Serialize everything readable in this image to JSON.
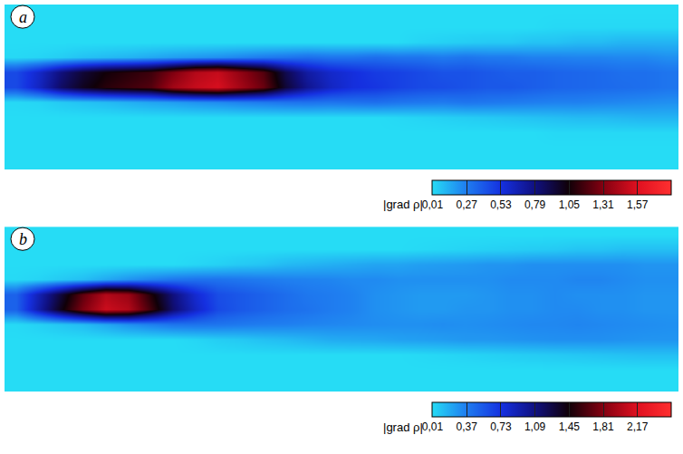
{
  "chart_data": [
    {
      "type": "heatmap",
      "panel": "a",
      "tick_labels": false,
      "z": [
        [
          0.01,
          0.01,
          0.01,
          0.01,
          0.01,
          0.01,
          0.01,
          0.01,
          0.01,
          0.01,
          0.01,
          0.01,
          0.01,
          0.01,
          0.01,
          0.01,
          0.01,
          0.01,
          0.01,
          0.01,
          0.01,
          0.01,
          0.01,
          0.01,
          0.01,
          0.01,
          0.01,
          0.01,
          0.01,
          0.01
        ],
        [
          0.01,
          0.01,
          0.01,
          0.01,
          0.01,
          0.01,
          0.01,
          0.01,
          0.01,
          0.01,
          0.01,
          0.01,
          0.01,
          0.01,
          0.01,
          0.01,
          0.01,
          0.01,
          0.01,
          0.01,
          0.01,
          0.01,
          0.01,
          0.01,
          0.02,
          0.02,
          0.02,
          0.02,
          0.02,
          0.02
        ],
        [
          0.01,
          0.01,
          0.01,
          0.01,
          0.01,
          0.01,
          0.01,
          0.01,
          0.01,
          0.01,
          0.01,
          0.01,
          0.01,
          0.01,
          0.01,
          0.01,
          0.01,
          0.01,
          0.03,
          0.04,
          0.05,
          0.06,
          0.06,
          0.08,
          0.08,
          0.1,
          0.1,
          0.12,
          0.12,
          0.12
        ],
        [
          0.02,
          0.03,
          0.05,
          0.08,
          0.1,
          0.12,
          0.15,
          0.18,
          0.2,
          0.22,
          0.25,
          0.28,
          0.3,
          0.32,
          0.3,
          0.3,
          0.32,
          0.3,
          0.3,
          0.28,
          0.3,
          0.28,
          0.28,
          0.26,
          0.26,
          0.25,
          0.25,
          0.24,
          0.24,
          0.22
        ],
        [
          0.45,
          0.6,
          0.8,
          0.95,
          1.05,
          1.1,
          1.15,
          1.3,
          1.45,
          1.5,
          1.35,
          1.2,
          0.9,
          0.7,
          0.6,
          0.55,
          0.5,
          0.48,
          0.45,
          0.42,
          0.42,
          0.4,
          0.38,
          0.38,
          0.36,
          0.35,
          0.34,
          0.32,
          0.32,
          0.3
        ],
        [
          0.45,
          0.62,
          0.85,
          1.0,
          1.1,
          1.15,
          1.2,
          1.4,
          1.5,
          1.55,
          1.4,
          1.25,
          0.95,
          0.75,
          0.62,
          0.55,
          0.52,
          0.48,
          0.45,
          0.44,
          0.42,
          0.4,
          0.4,
          0.38,
          0.36,
          0.35,
          0.34,
          0.33,
          0.32,
          0.3
        ],
        [
          0.02,
          0.03,
          0.06,
          0.08,
          0.1,
          0.13,
          0.16,
          0.18,
          0.21,
          0.23,
          0.26,
          0.28,
          0.3,
          0.31,
          0.3,
          0.31,
          0.32,
          0.3,
          0.29,
          0.28,
          0.3,
          0.29,
          0.28,
          0.27,
          0.26,
          0.26,
          0.25,
          0.24,
          0.23,
          0.22
        ],
        [
          0.01,
          0.01,
          0.01,
          0.01,
          0.01,
          0.01,
          0.01,
          0.01,
          0.01,
          0.01,
          0.01,
          0.01,
          0.01,
          0.01,
          0.01,
          0.01,
          0.01,
          0.02,
          0.03,
          0.04,
          0.05,
          0.06,
          0.07,
          0.08,
          0.09,
          0.1,
          0.1,
          0.11,
          0.12,
          0.12
        ],
        [
          0.01,
          0.01,
          0.01,
          0.01,
          0.01,
          0.01,
          0.01,
          0.01,
          0.01,
          0.01,
          0.01,
          0.01,
          0.01,
          0.01,
          0.01,
          0.01,
          0.01,
          0.01,
          0.01,
          0.01,
          0.01,
          0.01,
          0.01,
          0.01,
          0.02,
          0.02,
          0.02,
          0.02,
          0.02,
          0.02
        ],
        [
          0.01,
          0.01,
          0.01,
          0.01,
          0.01,
          0.01,
          0.01,
          0.01,
          0.01,
          0.01,
          0.01,
          0.01,
          0.01,
          0.01,
          0.01,
          0.01,
          0.01,
          0.01,
          0.01,
          0.01,
          0.01,
          0.01,
          0.01,
          0.01,
          0.01,
          0.01,
          0.01,
          0.01,
          0.01,
          0.01
        ],
        [
          0.01,
          0.01,
          0.01,
          0.01,
          0.01,
          0.01,
          0.01,
          0.01,
          0.01,
          0.01,
          0.01,
          0.01,
          0.01,
          0.01,
          0.01,
          0.01,
          0.01,
          0.01,
          0.01,
          0.01,
          0.01,
          0.01,
          0.01,
          0.01,
          0.01,
          0.01,
          0.01,
          0.01,
          0.01,
          0.01
        ]
      ],
      "colorbar": {
        "title": "|grad ρ|",
        "range": [
          0.01,
          1.83
        ],
        "ticks": [
          {
            "value": 0.01,
            "label": "0,01"
          },
          {
            "value": 0.27,
            "label": "0,27"
          },
          {
            "value": 0.53,
            "label": "0,53"
          },
          {
            "value": 0.79,
            "label": "0,79"
          },
          {
            "value": 1.05,
            "label": "1,05"
          },
          {
            "value": 1.31,
            "label": "1,31"
          },
          {
            "value": 1.57,
            "label": "1,57"
          }
        ]
      }
    },
    {
      "type": "heatmap",
      "panel": "b",
      "tick_labels": false,
      "z": [
        [
          0.01,
          0.01,
          0.01,
          0.01,
          0.01,
          0.01,
          0.01,
          0.01,
          0.01,
          0.01,
          0.01,
          0.01,
          0.01,
          0.01,
          0.01,
          0.01,
          0.01,
          0.01,
          0.01,
          0.01,
          0.01,
          0.01,
          0.01,
          0.01,
          0.01,
          0.01,
          0.01,
          0.01,
          0.01,
          0.01
        ],
        [
          0.01,
          0.01,
          0.01,
          0.01,
          0.01,
          0.01,
          0.01,
          0.01,
          0.01,
          0.01,
          0.01,
          0.01,
          0.01,
          0.01,
          0.01,
          0.01,
          0.01,
          0.01,
          0.02,
          0.03,
          0.04,
          0.05,
          0.06,
          0.07,
          0.08,
          0.1,
          0.1,
          0.12,
          0.12,
          0.12
        ],
        [
          0.01,
          0.01,
          0.01,
          0.01,
          0.01,
          0.01,
          0.01,
          0.01,
          0.03,
          0.05,
          0.08,
          0.1,
          0.14,
          0.16,
          0.18,
          0.2,
          0.22,
          0.22,
          0.24,
          0.25,
          0.26,
          0.28,
          0.28,
          0.3,
          0.3,
          0.3,
          0.3,
          0.3,
          0.28,
          0.28
        ],
        [
          0.02,
          0.04,
          0.08,
          0.12,
          0.2,
          0.28,
          0.35,
          0.4,
          0.42,
          0.42,
          0.4,
          0.38,
          0.36,
          0.35,
          0.34,
          0.32,
          0.32,
          0.3,
          0.3,
          0.3,
          0.3,
          0.3,
          0.32,
          0.32,
          0.32,
          0.34,
          0.34,
          0.32,
          0.3,
          0.3
        ],
        [
          0.5,
          0.9,
          1.3,
          1.7,
          2.0,
          1.9,
          1.5,
          1.1,
          0.8,
          0.6,
          0.55,
          0.5,
          0.45,
          0.4,
          0.38,
          0.35,
          0.3,
          0.28,
          0.26,
          0.26,
          0.26,
          0.28,
          0.3,
          0.3,
          0.32,
          0.3,
          0.3,
          0.3,
          0.28,
          0.28
        ],
        [
          0.5,
          0.95,
          1.4,
          1.8,
          2.1,
          2.0,
          1.6,
          1.15,
          0.85,
          0.62,
          0.55,
          0.5,
          0.45,
          0.42,
          0.38,
          0.35,
          0.3,
          0.28,
          0.26,
          0.26,
          0.28,
          0.28,
          0.3,
          0.3,
          0.32,
          0.32,
          0.3,
          0.3,
          0.28,
          0.28
        ],
        [
          0.02,
          0.05,
          0.09,
          0.13,
          0.21,
          0.3,
          0.36,
          0.41,
          0.42,
          0.41,
          0.39,
          0.37,
          0.36,
          0.34,
          0.33,
          0.32,
          0.31,
          0.3,
          0.3,
          0.31,
          0.3,
          0.31,
          0.32,
          0.33,
          0.33,
          0.34,
          0.33,
          0.32,
          0.31,
          0.3
        ],
        [
          0.01,
          0.01,
          0.01,
          0.01,
          0.01,
          0.01,
          0.01,
          0.01,
          0.03,
          0.06,
          0.08,
          0.11,
          0.13,
          0.16,
          0.19,
          0.2,
          0.21,
          0.23,
          0.24,
          0.25,
          0.27,
          0.27,
          0.28,
          0.29,
          0.3,
          0.3,
          0.3,
          0.29,
          0.28,
          0.28
        ],
        [
          0.01,
          0.01,
          0.01,
          0.01,
          0.01,
          0.01,
          0.01,
          0.01,
          0.01,
          0.01,
          0.01,
          0.01,
          0.01,
          0.01,
          0.01,
          0.01,
          0.01,
          0.01,
          0.02,
          0.03,
          0.04,
          0.05,
          0.06,
          0.07,
          0.08,
          0.09,
          0.1,
          0.11,
          0.12,
          0.12
        ],
        [
          0.01,
          0.01,
          0.01,
          0.01,
          0.01,
          0.01,
          0.01,
          0.01,
          0.01,
          0.01,
          0.01,
          0.01,
          0.01,
          0.01,
          0.01,
          0.01,
          0.01,
          0.01,
          0.01,
          0.01,
          0.01,
          0.01,
          0.01,
          0.01,
          0.01,
          0.01,
          0.01,
          0.01,
          0.01,
          0.01
        ],
        [
          0.01,
          0.01,
          0.01,
          0.01,
          0.01,
          0.01,
          0.01,
          0.01,
          0.01,
          0.01,
          0.01,
          0.01,
          0.01,
          0.01,
          0.01,
          0.01,
          0.01,
          0.01,
          0.01,
          0.01,
          0.01,
          0.01,
          0.01,
          0.01,
          0.01,
          0.01,
          0.01,
          0.01,
          0.01,
          0.01
        ]
      ],
      "colorbar": {
        "title": "|grad ρ|",
        "range": [
          0.01,
          2.53
        ],
        "ticks": [
          {
            "value": 0.01,
            "label": "0,01"
          },
          {
            "value": 0.37,
            "label": "0,37"
          },
          {
            "value": 0.73,
            "label": "0,73"
          },
          {
            "value": 1.09,
            "label": "1,09"
          },
          {
            "value": 1.45,
            "label": "1,45"
          },
          {
            "value": 1.81,
            "label": "1,81"
          },
          {
            "value": 2.17,
            "label": "2,17"
          }
        ]
      }
    }
  ]
}
